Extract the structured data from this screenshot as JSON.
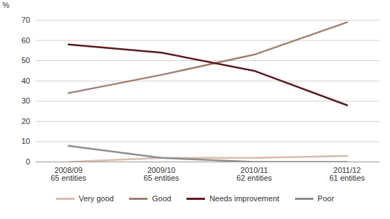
{
  "chart_data": {
    "type": "line",
    "y_label": "%",
    "categories": [
      "2008/09\n65 entities",
      "2009/10\n65 entities",
      "2010/11\n62 entities",
      "2011/12\n61 entities"
    ],
    "series": [
      {
        "name": "Very good",
        "color": "#d6bba8",
        "values": [
          0,
          2,
          2,
          3
        ]
      },
      {
        "name": "Good",
        "color": "#a08070",
        "values": [
          34,
          43,
          53,
          69
        ]
      },
      {
        "name": "Needs improvement",
        "color": "#5a1a1e",
        "values": [
          58,
          54,
          45,
          28
        ]
      },
      {
        "name": "Poor",
        "color": "#8e8e8e",
        "values": [
          8,
          2,
          0,
          0
        ]
      }
    ],
    "ylim": [
      0,
      70
    ],
    "yticks": [
      0,
      10,
      20,
      30,
      40,
      50,
      60,
      70
    ],
    "grid": true,
    "legend": "bottom"
  }
}
